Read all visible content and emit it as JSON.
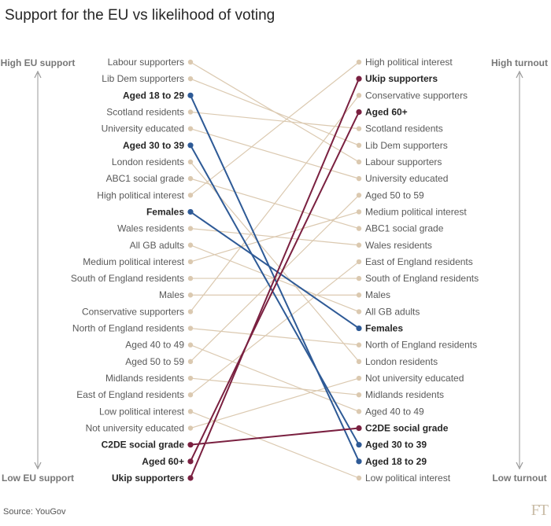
{
  "title": "Support for the EU vs likelihood of voting",
  "source": "Source: YouGov",
  "logo": "FT",
  "colors": {
    "neutral": "#dbc9b0",
    "blue": "#2e5a96",
    "maroon": "#7a2040",
    "axis": "#9a9a9a"
  },
  "chart_data": {
    "type": "slope",
    "left_axis": {
      "top_label": "High EU support",
      "bottom_label": "Low EU support"
    },
    "right_axis": {
      "top_label": "High turnout",
      "bottom_label": "Low turnout"
    },
    "left_order": [
      "Labour supporters",
      "Lib Dem supporters",
      "Aged 18 to 29",
      "Scotland residents",
      "University educated",
      "Aged 30 to 39",
      "London residents",
      "ABC1 social grade",
      "High political interest",
      "Females",
      "Wales residents",
      "All GB adults",
      "Medium political interest",
      "South of England residents",
      "Males",
      "Conservative supporters",
      "North of England residents",
      "Aged 40 to 49",
      "Aged 50 to 59",
      "Midlands residents",
      "East of England residents",
      "Low political interest",
      "Not university educated",
      "C2DE social grade",
      "Aged 60+",
      "Ukip supporters"
    ],
    "right_order": [
      "High political interest",
      "Ukip supporters",
      "Conservative supporters",
      "Aged 60+",
      "Scotland residents",
      "Lib Dem supporters",
      "Labour supporters",
      "University educated",
      "Aged 50 to 59",
      "Medium political interest",
      "ABC1 social grade",
      "Wales residents",
      "East of England residents",
      "South of England residents",
      "Males",
      "All GB adults",
      "Females",
      "North of England residents",
      "London residents",
      "Not university educated",
      "Midlands residents",
      "Aged 40 to 49",
      "C2DE social grade",
      "Aged 30 to 39",
      "Aged 18 to 29",
      "Low political interest"
    ],
    "highlight": {
      "Aged 18 to 29": "blue",
      "Aged 30 to 39": "blue",
      "Females": "blue",
      "C2DE social grade": "maroon",
      "Aged 60+": "maroon",
      "Ukip supporters": "maroon"
    }
  }
}
